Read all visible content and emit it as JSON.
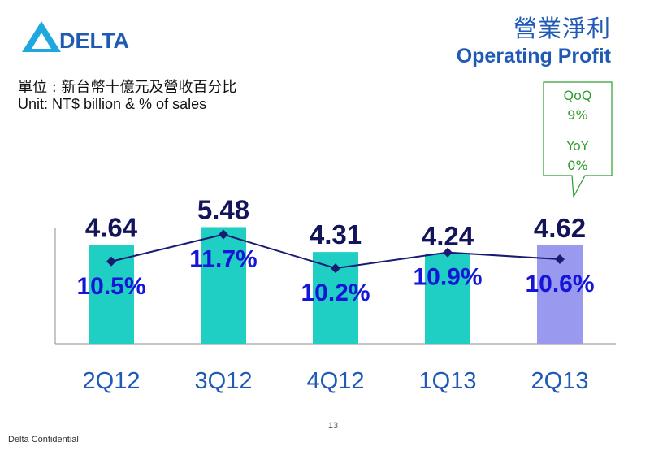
{
  "header": {
    "logo_text": "DELTA",
    "title_zh": "營業淨利",
    "title_en": "Operating Profit",
    "unit_zh": "單位 : 新台幣十億元及營收百分比",
    "unit_en": "Unit: NT$ billion & % of sales"
  },
  "callout": {
    "qoq_label": "QoQ",
    "qoq_value": "9%",
    "yoy_label": "YoY",
    "yoy_value": "0%"
  },
  "colors": {
    "brand_blue": "#1f5ab5",
    "bar_teal": "#1fcfc3",
    "bar_highlight": "#9999f0",
    "line_navy": "#1a1a72",
    "value_label": "#14145a",
    "percent_label": "#1515d8",
    "callout_text": "#2e9c2e",
    "callout_border": "#2e9c2e"
  },
  "chart_data": {
    "type": "bar",
    "categories": [
      "2Q12",
      "3Q12",
      "4Q12",
      "1Q13",
      "2Q13"
    ],
    "series": [
      {
        "values": [
          4.64,
          5.48,
          4.31,
          4.24,
          4.62
        ]
      },
      {
        "values": [
          10.5,
          11.7,
          10.2,
          10.9,
          10.6
        ]
      }
    ],
    "value_labels": [
      "4.64",
      "5.48",
      "4.31",
      "4.24",
      "4.62"
    ],
    "percent_labels": [
      "10.5%",
      "11.7%",
      "10.2%",
      "10.9%",
      "10.6%"
    ],
    "highlight_index": 4,
    "ylim": [
      0,
      6.3
    ],
    "percent_ylim": [
      6.85,
      12.8
    ],
    "grid": false,
    "title": "",
    "xlabel": "",
    "ylabel": ""
  },
  "footer": {
    "page_number": "13",
    "confidential": "Delta Confidential"
  }
}
